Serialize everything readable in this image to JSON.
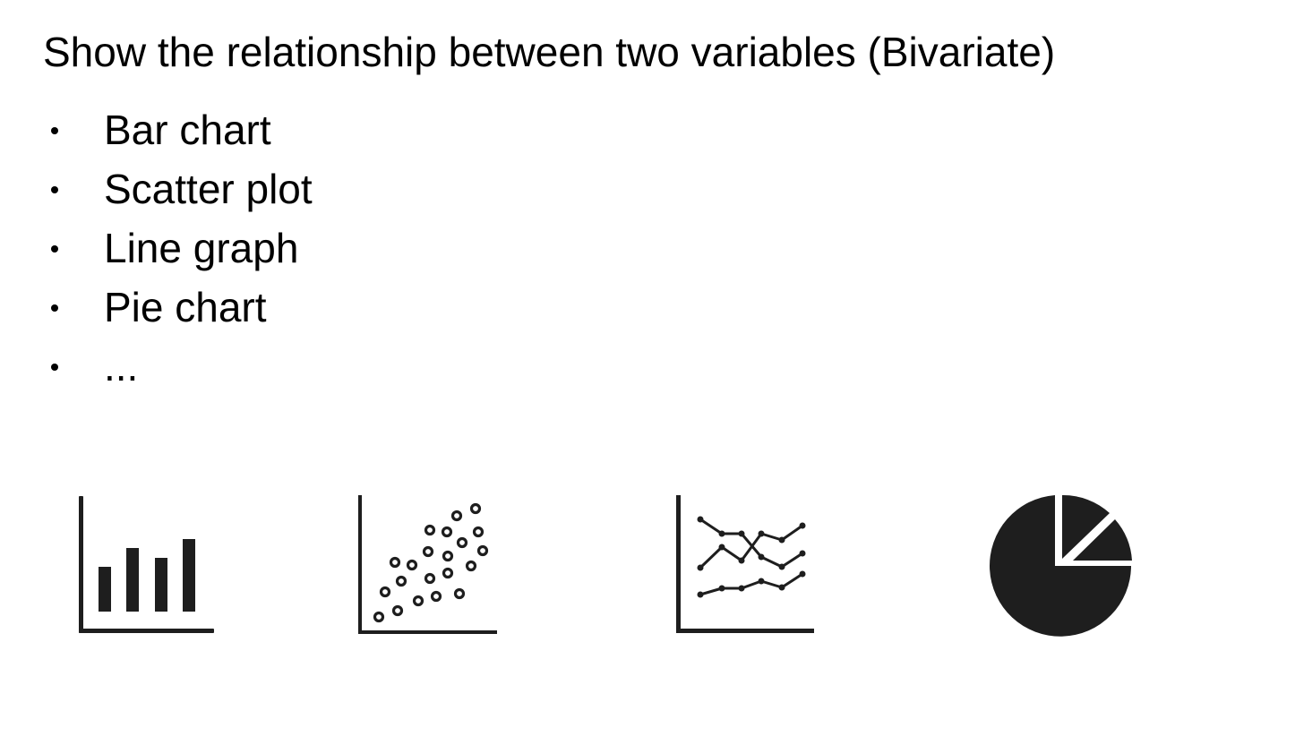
{
  "slide": {
    "title": "Show the relationship between two variables (Bivariate)",
    "bullets": [
      {
        "label": "Bar chart"
      },
      {
        "label": "Scatter plot"
      },
      {
        "label": "Line graph"
      },
      {
        "label": "Pie chart"
      },
      {
        "label": "..."
      }
    ]
  },
  "icons": [
    {
      "name": "bar-chart-icon",
      "color": "#1e1e1e"
    },
    {
      "name": "scatter-plot-icon",
      "color": "#1e1e1e"
    },
    {
      "name": "line-graph-icon",
      "color": "#1e1e1e"
    },
    {
      "name": "pie-chart-icon",
      "color": "#1e1e1e"
    }
  ]
}
